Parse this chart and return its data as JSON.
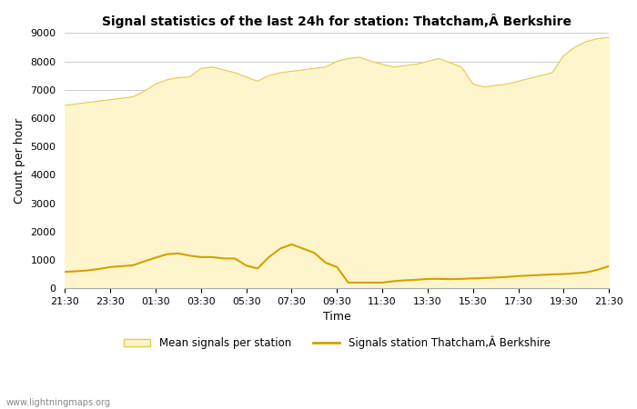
{
  "title": "Signal statistics of the last 24h for station: Thatcham,Â Berkshire",
  "xlabel": "Time",
  "ylabel": "Count per hour",
  "ylim": [
    0,
    9000
  ],
  "yticks": [
    0,
    1000,
    2000,
    3000,
    4000,
    5000,
    6000,
    7000,
    8000,
    9000
  ],
  "x_labels": [
    "21:30",
    "23:30",
    "01:30",
    "03:30",
    "05:30",
    "07:30",
    "09:30",
    "11:30",
    "13:30",
    "15:30",
    "17:30",
    "19:30",
    "21:30"
  ],
  "fill_color": "#FFF5CC",
  "fill_edge_color": "#E8C84A",
  "line_color": "#D4A000",
  "background_color": "#ffffff",
  "grid_color": "#cccccc",
  "watermark": "www.lightningmaps.org",
  "legend_fill_label": "Mean signals per station",
  "legend_line_label": "Signals station Thatcham,Â Berkshire",
  "mean_x": [
    0,
    0.5,
    1,
    1.5,
    2,
    2.5,
    3,
    3.5,
    4,
    4.5,
    5,
    5.5,
    6,
    6.5,
    7,
    7.5,
    8,
    8.5,
    9,
    9.5,
    10,
    10.5,
    11,
    11.5,
    12,
    12.5,
    13,
    13.5,
    14,
    14.5,
    15,
    15.5,
    16,
    16.5,
    17,
    17.5,
    18,
    18.5,
    19,
    19.5,
    20,
    20.5,
    21,
    21.5,
    22,
    22.5,
    23,
    23.5,
    24
  ],
  "mean_y": [
    6450,
    6500,
    6550,
    6600,
    6650,
    6700,
    6750,
    6950,
    7200,
    7350,
    7430,
    7450,
    7750,
    7800,
    7700,
    7600,
    7450,
    7300,
    7500,
    7600,
    7650,
    7700,
    7750,
    7800,
    8000,
    8100,
    8150,
    8000,
    7900,
    7800,
    7850,
    7900,
    8000,
    8100,
    7950,
    7800,
    7200,
    7100,
    7150,
    7200,
    7300,
    7400,
    7500,
    7600,
    8200,
    8500,
    8700,
    8800,
    8850
  ],
  "station_x": [
    0,
    0.5,
    1,
    1.5,
    2,
    2.5,
    3,
    3.5,
    4,
    4.5,
    5,
    5.5,
    6,
    6.5,
    7,
    7.5,
    8,
    8.5,
    9,
    9.5,
    10,
    10.5,
    11,
    11.5,
    12,
    12.5,
    13,
    13.5,
    14,
    14.5,
    15,
    15.5,
    16,
    16.5,
    17,
    17.5,
    18,
    18.5,
    19,
    19.5,
    20,
    20.5,
    21,
    21.5,
    22,
    22.5,
    23,
    23.5,
    24
  ],
  "station_y": [
    580,
    600,
    630,
    680,
    750,
    780,
    810,
    950,
    1080,
    1200,
    1230,
    1150,
    1100,
    1100,
    1050,
    1050,
    800,
    700,
    1100,
    1400,
    1550,
    1400,
    1250,
    900,
    750,
    200,
    200,
    200,
    200,
    250,
    280,
    300,
    330,
    330,
    320,
    330,
    350,
    360,
    380,
    400,
    430,
    450,
    470,
    490,
    500,
    530,
    560,
    650,
    780
  ]
}
